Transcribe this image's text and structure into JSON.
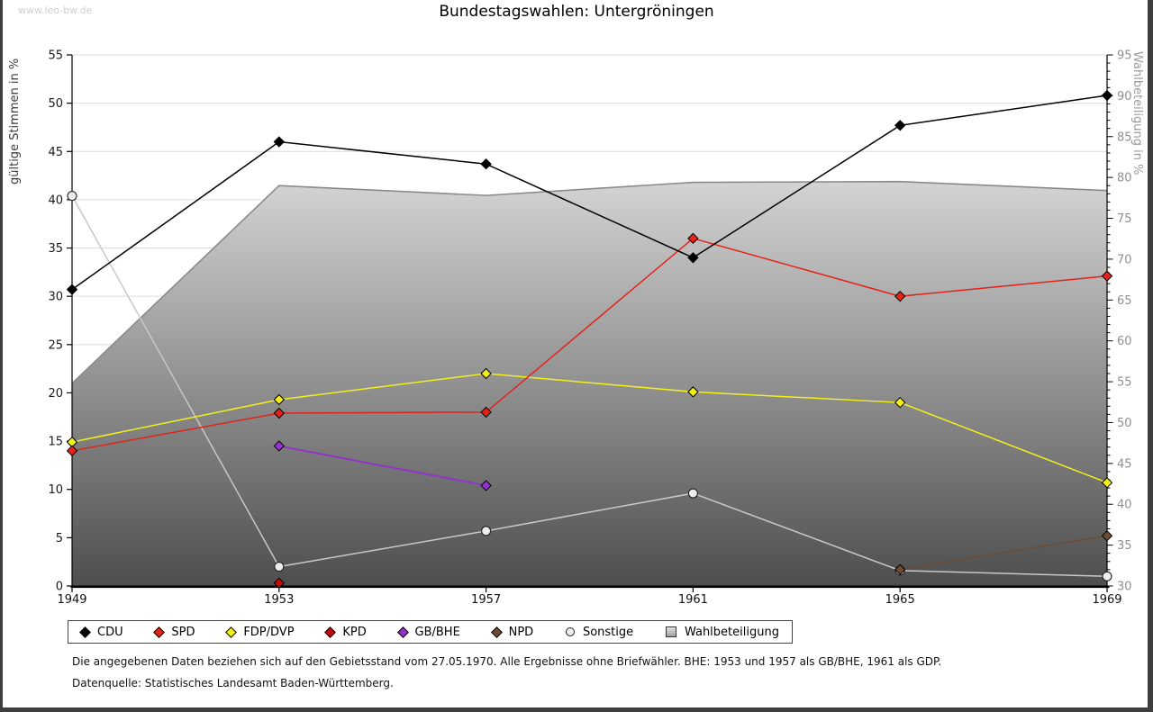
{
  "watermark": "www.leo-bw.de",
  "title": "Bundestagswahlen: Untergröningen",
  "axes": {
    "left_label": "gültige Stimmen in %",
    "right_label": "Wahlbeteiligung in %",
    "left_ticks": [
      0,
      5,
      10,
      15,
      20,
      25,
      30,
      35,
      40,
      45,
      50,
      55
    ],
    "right_ticks": [
      30,
      35,
      40,
      45,
      50,
      55,
      60,
      65,
      70,
      75,
      80,
      85,
      90,
      95
    ],
    "x_ticks": [
      "1949",
      "1953",
      "1957",
      "1961",
      "1965",
      "1969"
    ]
  },
  "chart_data": {
    "type": "line",
    "categories": [
      "1949",
      "1953",
      "1957",
      "1961",
      "1965",
      "1969"
    ],
    "left_axis": {
      "label": "gültige Stimmen in %",
      "min": 0,
      "max": 55,
      "tick_step": 5,
      "grid": true
    },
    "right_axis": {
      "label": "Wahlbeteiligung in %",
      "min": 30,
      "max": 95,
      "tick_step": 5,
      "minor_step": 1
    },
    "series": [
      {
        "name": "CDU",
        "axis": "left",
        "color": "#000000",
        "marker": "diamond",
        "z": 7,
        "values": [
          30.7,
          46.0,
          43.7,
          34.0,
          47.7,
          50.8
        ]
      },
      {
        "name": "SPD",
        "axis": "left",
        "color": "#e32219",
        "marker": "diamond",
        "z": 6,
        "values": [
          14.0,
          17.9,
          18.0,
          36.0,
          30.0,
          32.1
        ]
      },
      {
        "name": "FDP/DVP",
        "axis": "left",
        "color": "#f3ef1d",
        "marker": "diamond",
        "z": 5,
        "values": [
          14.9,
          19.3,
          22.0,
          20.1,
          19.0,
          10.7
        ]
      },
      {
        "name": "KPD",
        "axis": "left",
        "color": "#c00a0a",
        "marker": "diamond",
        "z": 3,
        "values": [
          null,
          0.3,
          null,
          null,
          null,
          null
        ]
      },
      {
        "name": "GB/BHE",
        "axis": "left",
        "color": "#9333cc",
        "marker": "diamond",
        "z": 2,
        "values": [
          null,
          14.5,
          10.4,
          null,
          null,
          null
        ]
      },
      {
        "name": "NPD",
        "axis": "left",
        "color": "#6d4c33",
        "marker": "diamond",
        "z": 4,
        "values": [
          null,
          null,
          null,
          null,
          1.7,
          5.2
        ]
      },
      {
        "name": "Sonstige",
        "axis": "left",
        "color": "#c8c8c8",
        "marker": "circle",
        "marker_fill": "#ededed",
        "z": 1,
        "values": [
          40.4,
          2.0,
          5.7,
          9.6,
          1.6,
          1.0
        ]
      }
    ],
    "area_series": {
      "name": "Wahlbeteiligung",
      "axis": "right",
      "edge_color": "#8a8a8a",
      "fill_top": "#fdfdfd",
      "fill_bottom": "#4e4e4e",
      "values": [
        54.8,
        79.0,
        77.8,
        79.4,
        79.5,
        78.4
      ]
    },
    "grid_color": "#dcdcdc",
    "right_tick_color": "#8f8f8f",
    "left_tick_color": "#1a1a1a"
  },
  "legend": {
    "items": [
      {
        "label": "CDU",
        "marker": "diamond",
        "color": "#000000"
      },
      {
        "label": "SPD",
        "marker": "diamond",
        "color": "#e32219"
      },
      {
        "label": "FDP/DVP",
        "marker": "diamond",
        "color": "#f3ef1d"
      },
      {
        "label": "KPD",
        "marker": "diamond",
        "color": "#c00a0a"
      },
      {
        "label": "GB/BHE",
        "marker": "diamond",
        "color": "#9333cc"
      },
      {
        "label": "NPD",
        "marker": "diamond",
        "color": "#6d4c33"
      },
      {
        "label": "Sonstige",
        "marker": "circle",
        "color": "#ededed"
      },
      {
        "label": "Wahlbeteiligung",
        "marker": "square",
        "color": "#bdbdbd"
      }
    ]
  },
  "footnotes": [
    "Die angegebenen Daten beziehen sich auf den Gebietsstand vom 27.05.1970. Alle Ergebnisse ohne Briefwähler. BHE: 1953 und 1957 als GB/BHE, 1961 als GDP.",
    "Datenquelle: Statistisches Landesamt Baden-Württemberg."
  ]
}
